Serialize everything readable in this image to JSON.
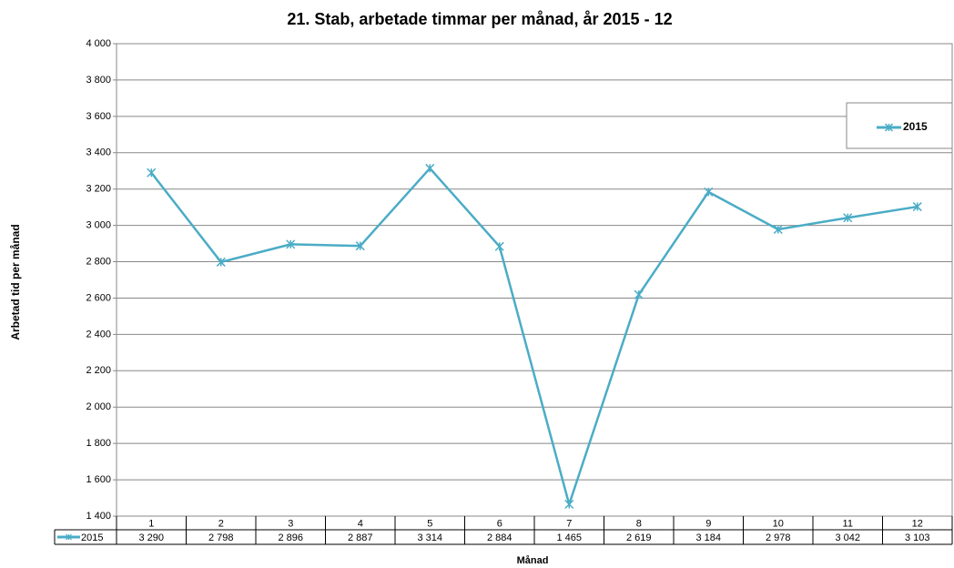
{
  "chart_data": {
    "type": "line",
    "title": "21. Stab, arbetade timmar per månad, år 2015 - 12",
    "y_label": "Arbetad tid per månad",
    "x_label": "Månad",
    "categories": [
      "1",
      "2",
      "3",
      "4",
      "5",
      "6",
      "7",
      "8",
      "9",
      "10",
      "11",
      "12"
    ],
    "series": [
      {
        "name": "2015",
        "color": "#4bacc6",
        "values": [
          3290,
          2798,
          2896,
          2887,
          3314,
          2884,
          1465,
          2619,
          3184,
          2978,
          3042,
          3103
        ],
        "value_labels": [
          "3 290",
          "2 798",
          "2 896",
          "2 887",
          "3 314",
          "2 884",
          "1 465",
          "2 619",
          "3 184",
          "2 978",
          "3 042",
          "3 103"
        ]
      }
    ],
    "ylim": [
      1400,
      4000
    ],
    "yticks": [
      {
        "value": 1400,
        "label": "1 400"
      },
      {
        "value": 1600,
        "label": "1 600"
      },
      {
        "value": 1800,
        "label": "1 800"
      },
      {
        "value": 2000,
        "label": "2 000"
      },
      {
        "value": 2200,
        "label": "2 200"
      },
      {
        "value": 2400,
        "label": "2 400"
      },
      {
        "value": 2600,
        "label": "2 600"
      },
      {
        "value": 2800,
        "label": "2 800"
      },
      {
        "value": 3000,
        "label": "3 000"
      },
      {
        "value": 3200,
        "label": "3 200"
      },
      {
        "value": 3400,
        "label": "3 400"
      },
      {
        "value": 3600,
        "label": "3 600"
      },
      {
        "value": 3800,
        "label": "3 800"
      },
      {
        "value": 4000,
        "label": "4 000"
      }
    ],
    "grid": true,
    "legend": "upper right"
  }
}
